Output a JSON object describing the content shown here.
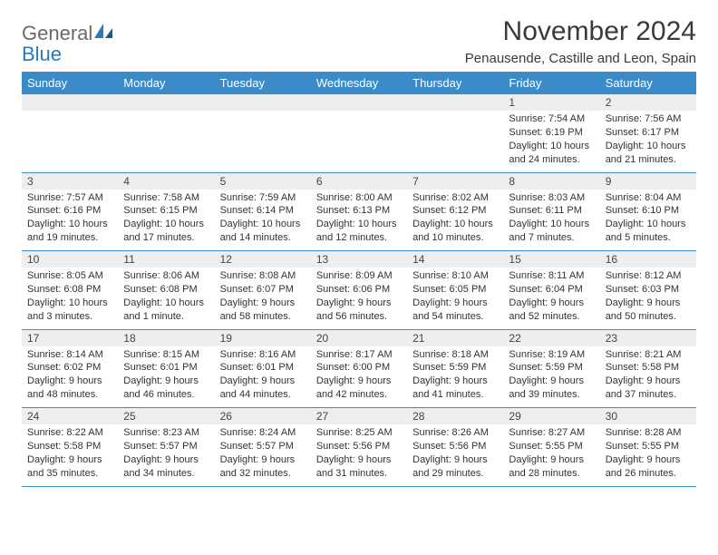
{
  "logo": {
    "textTop": "General",
    "textBottom": "Blue"
  },
  "title": "November 2024",
  "location": "Penausende, Castille and Leon, Spain",
  "colors": {
    "headerBg": "#3b8bc9",
    "headerText": "#ffffff",
    "dayNumBg": "#eceeef",
    "rowBorder": "#3b8bc9",
    "logoGray": "#6a6a6a",
    "logoBlue": "#2a7ab8"
  },
  "dayHeaders": [
    "Sunday",
    "Monday",
    "Tuesday",
    "Wednesday",
    "Thursday",
    "Friday",
    "Saturday"
  ],
  "weeks": [
    [
      null,
      null,
      null,
      null,
      null,
      {
        "n": "1",
        "sr": "Sunrise: 7:54 AM",
        "ss": "Sunset: 6:19 PM",
        "dl": "Daylight: 10 hours and 24 minutes."
      },
      {
        "n": "2",
        "sr": "Sunrise: 7:56 AM",
        "ss": "Sunset: 6:17 PM",
        "dl": "Daylight: 10 hours and 21 minutes."
      }
    ],
    [
      {
        "n": "3",
        "sr": "Sunrise: 7:57 AM",
        "ss": "Sunset: 6:16 PM",
        "dl": "Daylight: 10 hours and 19 minutes."
      },
      {
        "n": "4",
        "sr": "Sunrise: 7:58 AM",
        "ss": "Sunset: 6:15 PM",
        "dl": "Daylight: 10 hours and 17 minutes."
      },
      {
        "n": "5",
        "sr": "Sunrise: 7:59 AM",
        "ss": "Sunset: 6:14 PM",
        "dl": "Daylight: 10 hours and 14 minutes."
      },
      {
        "n": "6",
        "sr": "Sunrise: 8:00 AM",
        "ss": "Sunset: 6:13 PM",
        "dl": "Daylight: 10 hours and 12 minutes."
      },
      {
        "n": "7",
        "sr": "Sunrise: 8:02 AM",
        "ss": "Sunset: 6:12 PM",
        "dl": "Daylight: 10 hours and 10 minutes."
      },
      {
        "n": "8",
        "sr": "Sunrise: 8:03 AM",
        "ss": "Sunset: 6:11 PM",
        "dl": "Daylight: 10 hours and 7 minutes."
      },
      {
        "n": "9",
        "sr": "Sunrise: 8:04 AM",
        "ss": "Sunset: 6:10 PM",
        "dl": "Daylight: 10 hours and 5 minutes."
      }
    ],
    [
      {
        "n": "10",
        "sr": "Sunrise: 8:05 AM",
        "ss": "Sunset: 6:08 PM",
        "dl": "Daylight: 10 hours and 3 minutes."
      },
      {
        "n": "11",
        "sr": "Sunrise: 8:06 AM",
        "ss": "Sunset: 6:08 PM",
        "dl": "Daylight: 10 hours and 1 minute."
      },
      {
        "n": "12",
        "sr": "Sunrise: 8:08 AM",
        "ss": "Sunset: 6:07 PM",
        "dl": "Daylight: 9 hours and 58 minutes."
      },
      {
        "n": "13",
        "sr": "Sunrise: 8:09 AM",
        "ss": "Sunset: 6:06 PM",
        "dl": "Daylight: 9 hours and 56 minutes."
      },
      {
        "n": "14",
        "sr": "Sunrise: 8:10 AM",
        "ss": "Sunset: 6:05 PM",
        "dl": "Daylight: 9 hours and 54 minutes."
      },
      {
        "n": "15",
        "sr": "Sunrise: 8:11 AM",
        "ss": "Sunset: 6:04 PM",
        "dl": "Daylight: 9 hours and 52 minutes."
      },
      {
        "n": "16",
        "sr": "Sunrise: 8:12 AM",
        "ss": "Sunset: 6:03 PM",
        "dl": "Daylight: 9 hours and 50 minutes."
      }
    ],
    [
      {
        "n": "17",
        "sr": "Sunrise: 8:14 AM",
        "ss": "Sunset: 6:02 PM",
        "dl": "Daylight: 9 hours and 48 minutes."
      },
      {
        "n": "18",
        "sr": "Sunrise: 8:15 AM",
        "ss": "Sunset: 6:01 PM",
        "dl": "Daylight: 9 hours and 46 minutes."
      },
      {
        "n": "19",
        "sr": "Sunrise: 8:16 AM",
        "ss": "Sunset: 6:01 PM",
        "dl": "Daylight: 9 hours and 44 minutes."
      },
      {
        "n": "20",
        "sr": "Sunrise: 8:17 AM",
        "ss": "Sunset: 6:00 PM",
        "dl": "Daylight: 9 hours and 42 minutes."
      },
      {
        "n": "21",
        "sr": "Sunrise: 8:18 AM",
        "ss": "Sunset: 5:59 PM",
        "dl": "Daylight: 9 hours and 41 minutes."
      },
      {
        "n": "22",
        "sr": "Sunrise: 8:19 AM",
        "ss": "Sunset: 5:59 PM",
        "dl": "Daylight: 9 hours and 39 minutes."
      },
      {
        "n": "23",
        "sr": "Sunrise: 8:21 AM",
        "ss": "Sunset: 5:58 PM",
        "dl": "Daylight: 9 hours and 37 minutes."
      }
    ],
    [
      {
        "n": "24",
        "sr": "Sunrise: 8:22 AM",
        "ss": "Sunset: 5:58 PM",
        "dl": "Daylight: 9 hours and 35 minutes."
      },
      {
        "n": "25",
        "sr": "Sunrise: 8:23 AM",
        "ss": "Sunset: 5:57 PM",
        "dl": "Daylight: 9 hours and 34 minutes."
      },
      {
        "n": "26",
        "sr": "Sunrise: 8:24 AM",
        "ss": "Sunset: 5:57 PM",
        "dl": "Daylight: 9 hours and 32 minutes."
      },
      {
        "n": "27",
        "sr": "Sunrise: 8:25 AM",
        "ss": "Sunset: 5:56 PM",
        "dl": "Daylight: 9 hours and 31 minutes."
      },
      {
        "n": "28",
        "sr": "Sunrise: 8:26 AM",
        "ss": "Sunset: 5:56 PM",
        "dl": "Daylight: 9 hours and 29 minutes."
      },
      {
        "n": "29",
        "sr": "Sunrise: 8:27 AM",
        "ss": "Sunset: 5:55 PM",
        "dl": "Daylight: 9 hours and 28 minutes."
      },
      {
        "n": "30",
        "sr": "Sunrise: 8:28 AM",
        "ss": "Sunset: 5:55 PM",
        "dl": "Daylight: 9 hours and 26 minutes."
      }
    ]
  ]
}
